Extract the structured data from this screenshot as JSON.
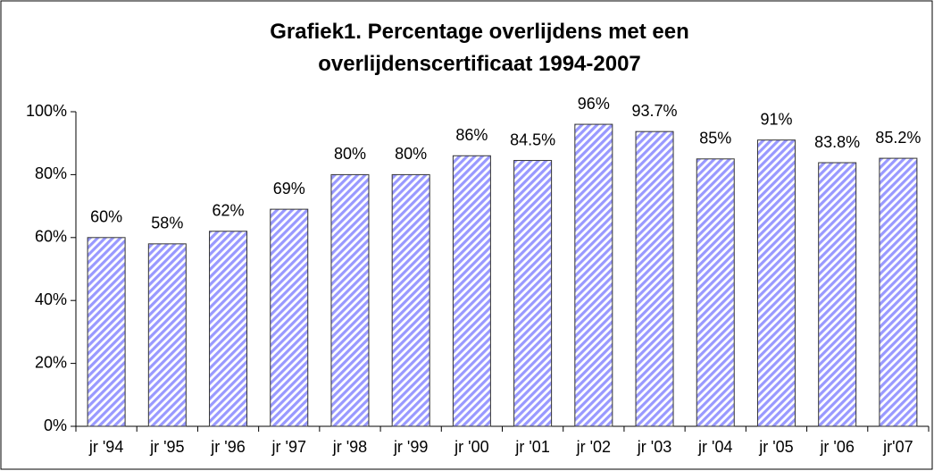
{
  "chart_data": {
    "type": "bar",
    "title": "Grafiek1. Percentage overlijdens met een overlijdenscertificaat 1994-2007",
    "categories": [
      "jr '94",
      "jr '95",
      "jr '96",
      "jr '97",
      "jr '98",
      "jr '99",
      "jr '00",
      "jr '01",
      "jr '02",
      "jr '03",
      "jr '04",
      "jr '05",
      "jr '06",
      "jr'07"
    ],
    "values": [
      60,
      58,
      62,
      69,
      80,
      80,
      86,
      84.5,
      96,
      93.7,
      85,
      91,
      83.8,
      85.2
    ],
    "value_labels": [
      "60%",
      "58%",
      "62%",
      "69%",
      "80%",
      "80%",
      "86%",
      "84.5%",
      "96%",
      "93.7%",
      "85%",
      "91%",
      "83.8%",
      "85.2%"
    ],
    "color": "#9999ff",
    "ylim": [
      0,
      100
    ],
    "yticks": [
      {
        "value": 0,
        "label": "0%"
      },
      {
        "value": 20,
        "label": "20%"
      },
      {
        "value": 40,
        "label": "40%"
      },
      {
        "value": 60,
        "label": "60%"
      },
      {
        "value": 80,
        "label": "80%"
      },
      {
        "value": 100,
        "label": "100%"
      }
    ],
    "grid": false
  }
}
